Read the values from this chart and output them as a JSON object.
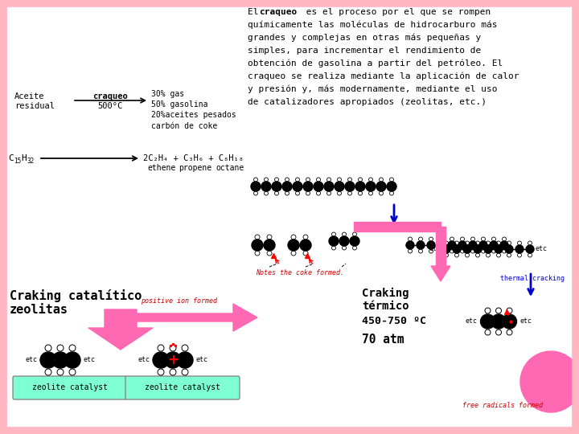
{
  "bg_color": "#ffffff",
  "border_color": "#ffb6c1",
  "pink": "#ff69b4",
  "blue": "#0000cd",
  "red": "#cc0000",
  "black": "#000000",
  "cyan_box": "#7fffd4",
  "desc_line0_a": "El ",
  "desc_line0_b": "craqueo",
  "desc_line0_c": " es el proceso por el que se rompen",
  "desc_lines": [
    "químicamente las moléculas de hidrocarburo más",
    "grandes y complejas en otras más pequeñas y",
    "simples, para incrementar el rendimiento de",
    "obtención de gasolina a partir del petróleo. El",
    "craqueo se realiza mediante la aplicación de calor",
    "y presión y, más modernamente, mediante el uso",
    "de catalizadores apropiados (zeolitas, etc.)"
  ],
  "aceite": "Aceite\nresidual",
  "craqueo_label": "craqueo",
  "temp_label": "500°C",
  "products": "30% gas\n50% gasolina\n20%aceites pesados\ncarbón de coke",
  "eq_left": "C",
  "eq_left_sub": "15",
  "eq_left2": "H",
  "eq_left_sub2": "32",
  "eq_right": "2C₂H₄ + C₃H₆ + C₈H₁₈",
  "ethene": "ethene",
  "propene": "propene",
  "octane": "octane",
  "craking_cat": "Craking catalítico\nzeolitas",
  "positive_ion": "positive ion formed",
  "notes_coke": "Notes the coke formed.",
  "craking_term": "Craking\ntérmico",
  "temp_range": "450-750 ºC",
  "atm": "70 atm",
  "thermal_cracking": "thermal cracking",
  "free_radicals": "free radicals formed",
  "zeolite_cat1": "zeolite catalyst",
  "zeolite_cat2": "zeolite catalyst"
}
